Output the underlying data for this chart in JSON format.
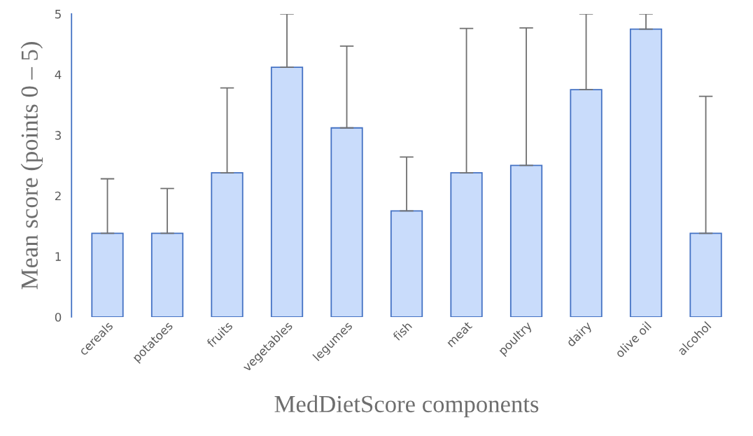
{
  "chart_data": {
    "type": "bar",
    "xlabel": "MedDietScore components",
    "ylabel": "Mean score (points 0 – 5)",
    "categories": [
      "cereals",
      "potatoes",
      "fruits",
      "vegetables",
      "legumes",
      "fish",
      "meat",
      "poultry",
      "dairy",
      "olive oil",
      "alcohol"
    ],
    "values": [
      1.38,
      1.38,
      2.38,
      4.12,
      3.12,
      1.75,
      2.38,
      2.5,
      3.75,
      4.75,
      1.38
    ],
    "errors": [
      [
        1.38,
        2.28
      ],
      [
        1.38,
        2.12
      ],
      [
        2.38,
        3.78
      ],
      [
        4.12,
        5
      ],
      [
        3.12,
        4.47
      ],
      [
        1.75,
        2.64
      ],
      [
        2.38,
        4.76
      ],
      [
        2.5,
        4.77
      ],
      [
        3.75,
        5
      ],
      [
        4.75,
        5
      ],
      [
        1.38,
        3.64
      ]
    ],
    "color": "#c9dcfb",
    "ylim": [
      0,
      5
    ],
    "yticks": [
      0,
      1,
      2,
      3,
      4,
      5
    ],
    "grid": false,
    "legend": false
  }
}
